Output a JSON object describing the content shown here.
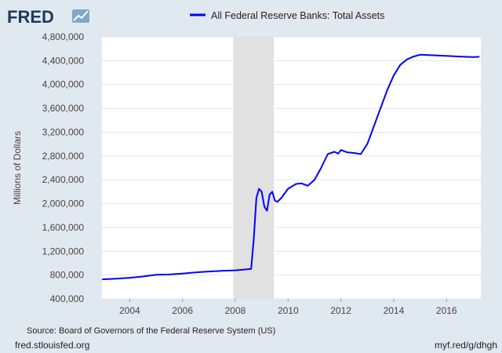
{
  "brand": {
    "logo_text": "FRED",
    "logo_icon": "line-chart-icon"
  },
  "chart_data": {
    "type": "line",
    "title": "",
    "xlabel": "",
    "ylabel": "Millions of Dollars",
    "xlim": [
      2002.95,
      2017.3
    ],
    "ylim": [
      400000,
      4800000
    ],
    "y_ticks": [
      400000,
      800000,
      1200000,
      1600000,
      2000000,
      2400000,
      2800000,
      3200000,
      3600000,
      4000000,
      4400000,
      4800000
    ],
    "y_tick_labels": [
      "400,000",
      "800,000",
      "1,200,000",
      "1,600,000",
      "2,000,000",
      "2,400,000",
      "2,800,000",
      "3,200,000",
      "3,600,000",
      "4,000,000",
      "4,400,000",
      "4,800,000"
    ],
    "x_ticks": [
      2004,
      2006,
      2008,
      2010,
      2012,
      2014,
      2016
    ],
    "x_tick_labels": [
      "2004",
      "2006",
      "2008",
      "2010",
      "2012",
      "2014",
      "2016"
    ],
    "grid": true,
    "legend_position": "top-center",
    "recession_shading": [
      {
        "start": 2007.92,
        "end": 2009.46
      }
    ],
    "series": [
      {
        "name": "All Federal Reserve Banks: Total Assets",
        "color": "#0000ff",
        "points": [
          [
            2002.96,
            728000
          ],
          [
            2003.5,
            740000
          ],
          [
            2004.0,
            755000
          ],
          [
            2004.5,
            775000
          ],
          [
            2005.0,
            805000
          ],
          [
            2005.5,
            810000
          ],
          [
            2006.0,
            825000
          ],
          [
            2006.5,
            845000
          ],
          [
            2007.0,
            860000
          ],
          [
            2007.5,
            870000
          ],
          [
            2008.0,
            880000
          ],
          [
            2008.3,
            890000
          ],
          [
            2008.6,
            905000
          ],
          [
            2008.7,
            1400000
          ],
          [
            2008.8,
            2100000
          ],
          [
            2008.9,
            2250000
          ],
          [
            2009.0,
            2200000
          ],
          [
            2009.1,
            1950000
          ],
          [
            2009.2,
            1880000
          ],
          [
            2009.3,
            2150000
          ],
          [
            2009.4,
            2200000
          ],
          [
            2009.5,
            2050000
          ],
          [
            2009.6,
            2030000
          ],
          [
            2009.75,
            2100000
          ],
          [
            2010.0,
            2250000
          ],
          [
            2010.3,
            2330000
          ],
          [
            2010.5,
            2340000
          ],
          [
            2010.75,
            2300000
          ],
          [
            2011.0,
            2400000
          ],
          [
            2011.25,
            2600000
          ],
          [
            2011.5,
            2830000
          ],
          [
            2011.75,
            2870000
          ],
          [
            2011.9,
            2840000
          ],
          [
            2012.0,
            2900000
          ],
          [
            2012.25,
            2860000
          ],
          [
            2012.5,
            2850000
          ],
          [
            2012.75,
            2830000
          ],
          [
            2013.0,
            3000000
          ],
          [
            2013.25,
            3300000
          ],
          [
            2013.5,
            3600000
          ],
          [
            2013.75,
            3900000
          ],
          [
            2014.0,
            4150000
          ],
          [
            2014.25,
            4330000
          ],
          [
            2014.5,
            4420000
          ],
          [
            2014.75,
            4470000
          ],
          [
            2015.0,
            4500000
          ],
          [
            2015.5,
            4490000
          ],
          [
            2016.0,
            4480000
          ],
          [
            2016.5,
            4470000
          ],
          [
            2017.0,
            4460000
          ],
          [
            2017.25,
            4465000
          ]
        ]
      }
    ]
  },
  "footer": {
    "source": "Source: Board of Governors of the Federal Reserve System (US)",
    "site": "fred.stlouisfed.org",
    "short_link": "myf.red/g/dhgh"
  }
}
